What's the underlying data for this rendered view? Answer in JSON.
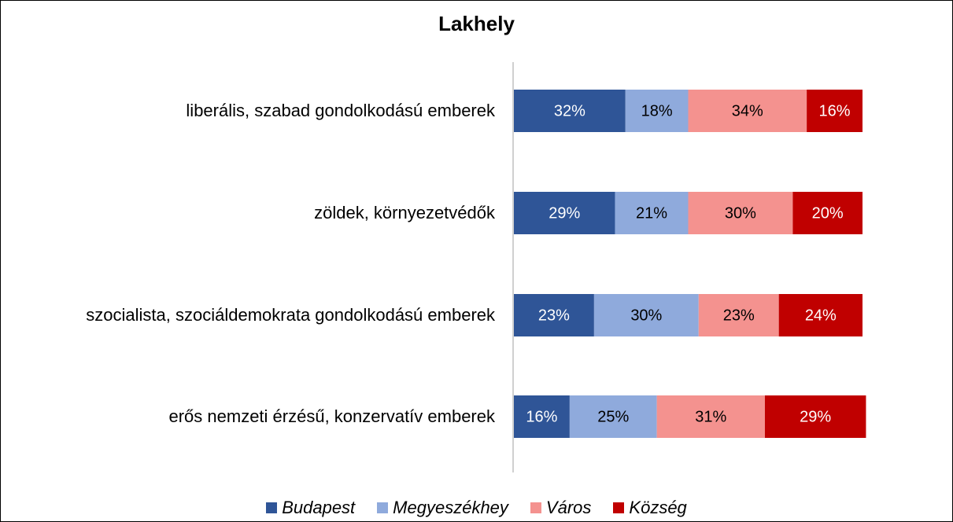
{
  "chart_data": {
    "type": "stacked_barh",
    "title": "Lakhely",
    "categories": [
      "liberális, szabad gondolkodású emberek",
      "zöldek, környezetvédők",
      "szocialista, szociáldemokrata gondolkodású emberek",
      "erős nemzeti érzésű, konzervatív emberek"
    ],
    "xlim": [
      0,
      100
    ],
    "series": [
      {
        "name": "Budapest",
        "color": "#2f5597",
        "label_color": "#ffffff",
        "values": [
          32,
          29,
          23,
          16
        ],
        "value_labels": [
          "32%",
          "29%",
          "23%",
          "16%"
        ]
      },
      {
        "name": "Megyeszékhey",
        "color": "#8faadc",
        "label_color": "#000000",
        "values": [
          18,
          21,
          30,
          25
        ],
        "value_labels": [
          "18%",
          "21%",
          "30%",
          "25%"
        ]
      },
      {
        "name": "Város",
        "color": "#f4928f",
        "label_color": "#000000",
        "values": [
          34,
          30,
          23,
          31
        ],
        "value_labels": [
          "34%",
          "30%",
          "23%",
          "31%"
        ]
      },
      {
        "name": "Község",
        "color": "#c00000",
        "label_color": "#ffffff",
        "values": [
          16,
          20,
          24,
          29
        ],
        "value_labels": [
          "16%",
          "20%",
          "24%",
          "29%"
        ]
      }
    ],
    "legend": "bottom"
  }
}
